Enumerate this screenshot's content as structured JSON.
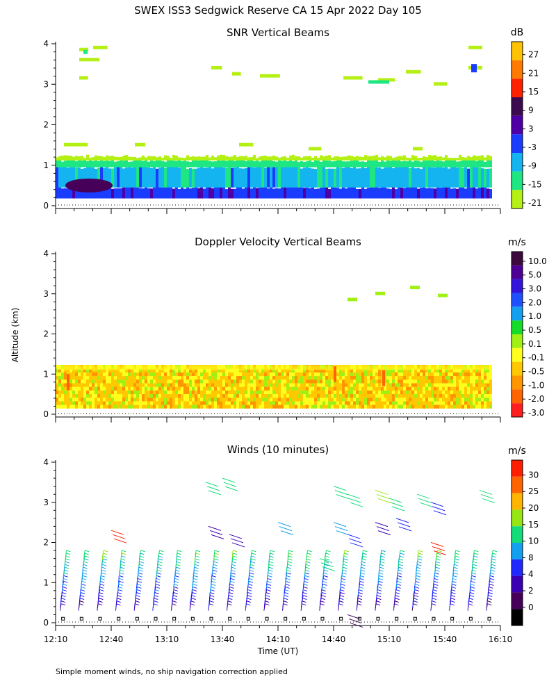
{
  "figure": {
    "title": "SWEX ISS3 Sedgwick Reserve CA  15 Apr 2022 Day 105",
    "ylabel": "Altitude (km)",
    "xlabel": "Time (UT)",
    "footnote": "Simple moment winds, no ship navigation correction applied"
  },
  "chart_data": [
    {
      "type": "heatmap",
      "title": "SNR Vertical Beams",
      "x_range_min": [
        730,
        970
      ],
      "ylim": [
        0,
        4
      ],
      "y_ticks": [
        "0",
        "1",
        "2",
        "3",
        "4"
      ],
      "colorbar": {
        "unit": "dB",
        "labels": [
          "27",
          "21",
          "15",
          "9",
          "3",
          "-3",
          "-9",
          "-15",
          "-21"
        ],
        "colors": [
          "#ffc200",
          "#ff7a00",
          "#ff2000",
          "#3c0a4e",
          "#4e00a6",
          "#1a3cff",
          "#14b4f0",
          "#1ee682",
          "#b4f014"
        ]
      },
      "layers": [
        {
          "name": "surface layer",
          "alt_km": [
            0.2,
            0.5
          ],
          "snr_db": 3
        },
        {
          "name": "boundary layer",
          "alt_km": [
            0.5,
            1.0
          ],
          "snr_db": -9
        },
        {
          "name": "top of boundary layer",
          "alt_km": [
            1.0,
            1.2
          ],
          "snr_db": -15
        },
        {
          "name": "scattered echoes",
          "alt_km": [
            2.8,
            4.0
          ],
          "snr_db": -21
        }
      ]
    },
    {
      "type": "heatmap",
      "title": "Doppler Velocity Vertical Beams",
      "ylim": [
        0,
        4
      ],
      "y_ticks": [
        "0",
        "1",
        "2",
        "3",
        "4"
      ],
      "colorbar": {
        "unit": "m/s",
        "labels": [
          "10.0",
          "5.0",
          "3.0",
          "2.0",
          "1.0",
          "0.5",
          "0.1",
          "-0.1",
          "-0.5",
          "-1.0",
          "-2.0",
          "-3.0"
        ],
        "colors": [
          "#3c0a3c",
          "#4e0096",
          "#3214dc",
          "#1e50ff",
          "#14a0f0",
          "#14dc28",
          "#a0f014",
          "#ffff1e",
          "#ffc800",
          "#ff9600",
          "#ff6400",
          "#ff1e1e"
        ]
      },
      "layers": [
        {
          "name": "boundary layer",
          "alt_km": [
            0.2,
            1.2
          ],
          "velocity_ms": -0.3
        },
        {
          "name": "upper echoes",
          "alt_km": [
            2.8,
            3.2
          ],
          "velocity_ms": 0.1
        }
      ]
    },
    {
      "type": "scatter",
      "title": "Winds (10 minutes)",
      "ylim": [
        0,
        4
      ],
      "y_ticks": [
        "0",
        "1",
        "2",
        "3",
        "4"
      ],
      "x_ticks": [
        "12:10",
        "12:40",
        "13:10",
        "13:40",
        "14:10",
        "14:40",
        "15:10",
        "15:40",
        "16:10"
      ],
      "x_tick_minutes": [
        730,
        760,
        790,
        820,
        850,
        880,
        910,
        940,
        970
      ],
      "colorbar": {
        "unit": "m/s",
        "labels": [
          "30",
          "25",
          "20",
          "15",
          "10",
          "8",
          "4",
          "2",
          "0"
        ],
        "colors": [
          "#ff1e00",
          "#ff6400",
          "#ffb400",
          "#96e614",
          "#14dc78",
          "#14a0f0",
          "#1e28ff",
          "#3c00b4",
          "#46005a",
          "#000000"
        ]
      },
      "profile_times_min": [
        734,
        744,
        754,
        764,
        774,
        784,
        794,
        804,
        814,
        824,
        834,
        844,
        854,
        864,
        874,
        884,
        894,
        904,
        914,
        924,
        934,
        944,
        954,
        964
      ]
    }
  ]
}
